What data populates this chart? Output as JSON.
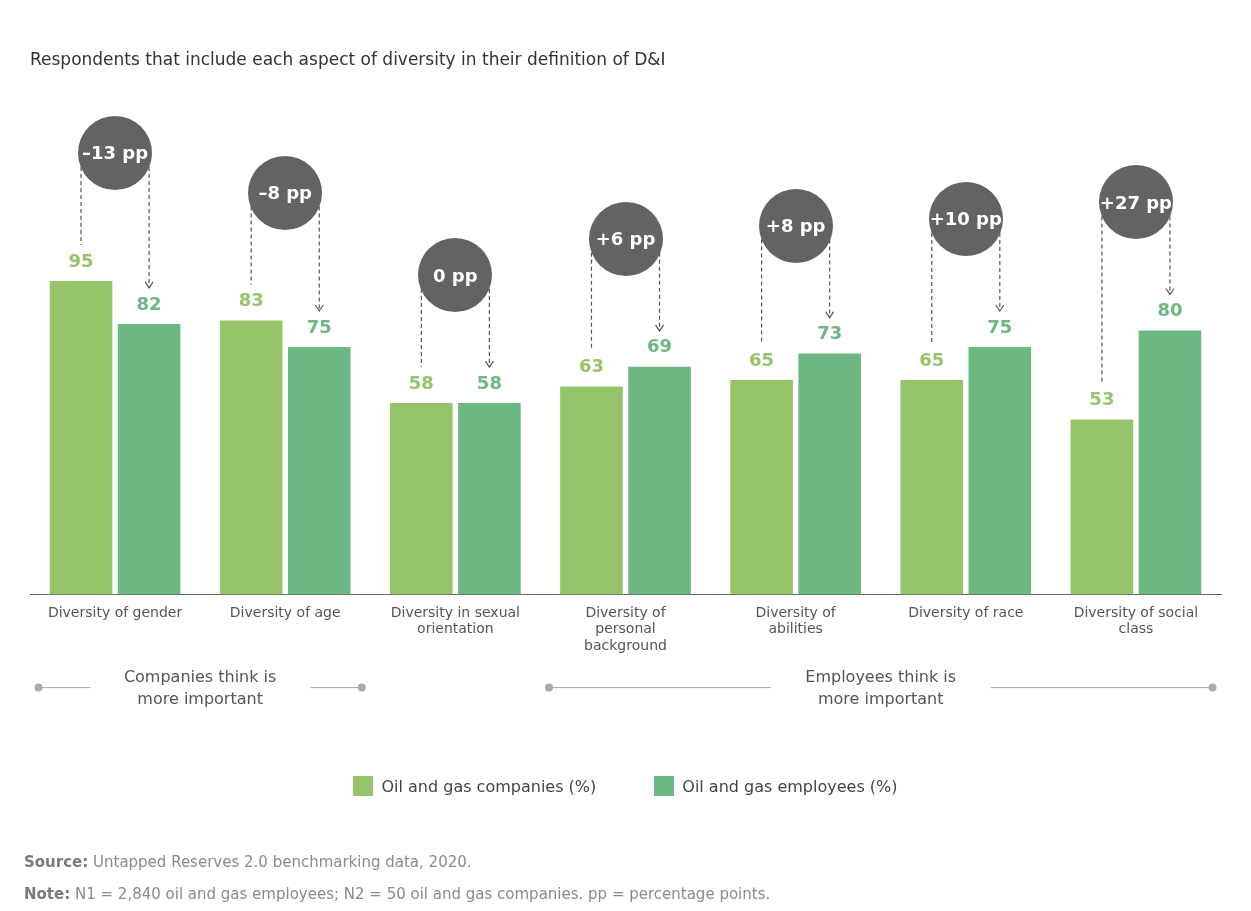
{
  "chart_data": {
    "type": "bar",
    "title": "Respondents that include each aspect of diversity in their definition of D&I",
    "categories": [
      "Diversity of gender",
      "Diversity of age",
      "Diversity in sexual orientation",
      "Diversity of personal background",
      "Diversity of abilities",
      "Diversity of race",
      "Diversity of social class"
    ],
    "series": [
      {
        "name": "Oil and gas companies (%)",
        "color": "#96c46b",
        "values": [
          95,
          83,
          58,
          63,
          65,
          65,
          53
        ]
      },
      {
        "name": "Oil and gas employees (%)",
        "color": "#6db882",
        "values": [
          82,
          75,
          58,
          69,
          73,
          75,
          80
        ]
      }
    ],
    "data_labels": true,
    "legend": "bottom",
    "annotations": [
      "–13 pp",
      "–8 pp",
      "0 pp",
      "+6 pp",
      "+8 pp",
      "+10 pp",
      "+27 pp",
      "Companies think is more important",
      "Employees think is more important",
      "Source: Untapped Reserves 2.0 benchmarking data, 2020.",
      "Note: N1 = 2,840 oil and gas employees; N2 = 50 oil and gas companies. pp = percentage points."
    ]
  }
}
